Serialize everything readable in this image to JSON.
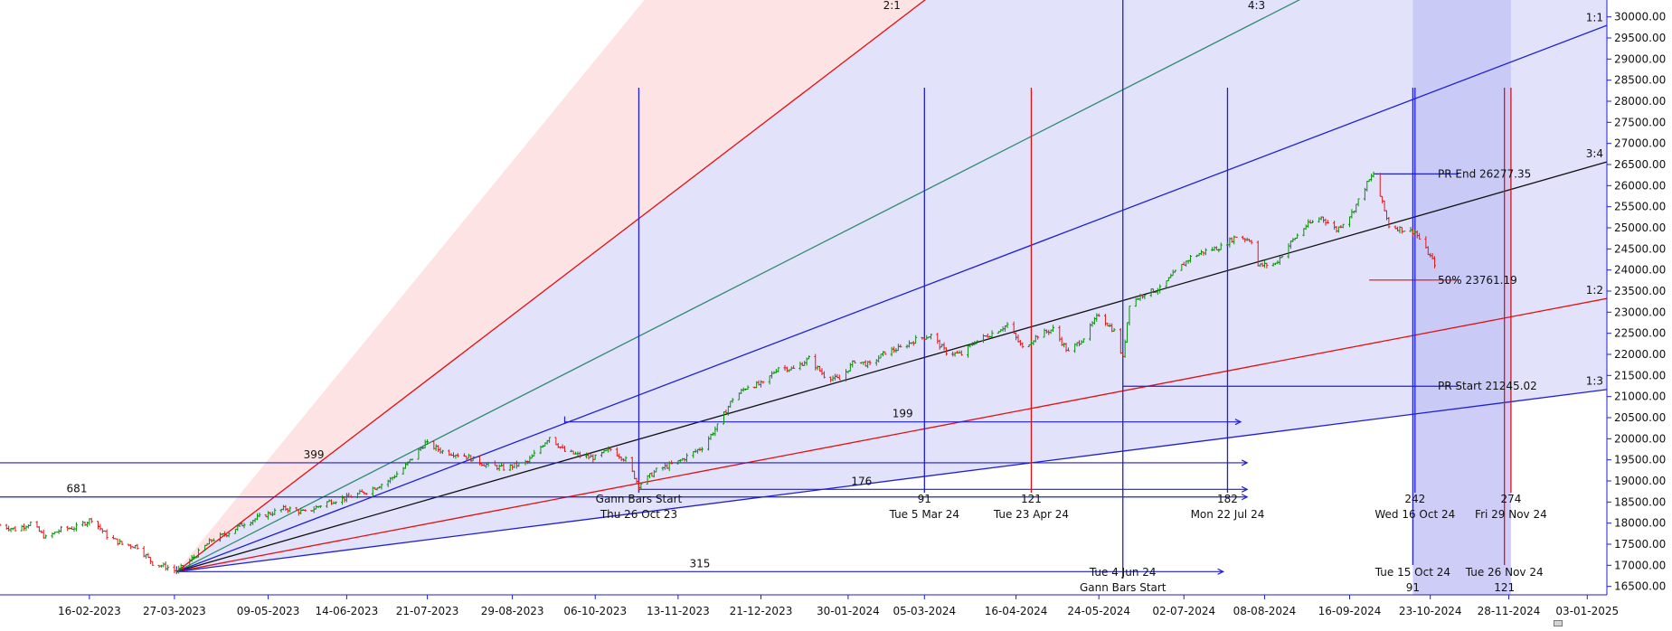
{
  "colors": {
    "blue": "#1f1fd6",
    "red": "#e01010",
    "black": "#111111",
    "teal": "#2e8b6e",
    "fan_blue_fill": "#e2e2fb",
    "fan_red_fill": "#fde3e3",
    "zone_fill": "#c8c8f6",
    "candle_up": "#0a8f0a",
    "candle_down": "#e01818",
    "axis": "#1f1fd6"
  },
  "chart_data": {
    "type": "line",
    "subtype": "candlestick price chart with Gann fan, time-cycle lines and price retracement",
    "x_axis": {
      "type": "date",
      "range": [
        "2023-01-06",
        "2025-01-12"
      ],
      "tick_labels": [
        "16-02-2023",
        "27-03-2023",
        "09-05-2023",
        "14-06-2023",
        "21-07-2023",
        "29-08-2023",
        "06-10-2023",
        "13-11-2023",
        "21-12-2023",
        "30-01-2024",
        "05-03-2024",
        "16-04-2024",
        "24-05-2024",
        "02-07-2024",
        "08-08-2024",
        "16-09-2024",
        "23-10-2024",
        "28-11-2024",
        "03-01-2025"
      ]
    },
    "y_axis": {
      "position": "right",
      "range": [
        16300,
        30400
      ],
      "tick_labels": [
        "30000.00",
        "29500.00",
        "29000.00",
        "28500.00",
        "28000.00",
        "27500.00",
        "27000.00",
        "26500.00",
        "26000.00",
        "25500.00",
        "25000.00",
        "24500.00",
        "24000.00",
        "23500.00",
        "23000.00",
        "22500.00",
        "22000.00",
        "21500.00",
        "21000.00",
        "20500.00",
        "20000.00",
        "19500.00",
        "19000.00",
        "18500.00",
        "18000.00",
        "17500.00",
        "17000.00",
        "16500.00"
      ]
    },
    "price_series": [
      [
        "2023-01-06",
        17950
      ],
      [
        "2023-01-13",
        17850
      ],
      [
        "2023-01-20",
        18000
      ],
      [
        "2023-01-27",
        17650
      ],
      [
        "2023-02-03",
        17850
      ],
      [
        "2023-02-10",
        17900
      ],
      [
        "2023-02-17",
        18100
      ],
      [
        "2023-02-24",
        17700
      ],
      [
        "2023-03-03",
        17500
      ],
      [
        "2023-03-10",
        17450
      ],
      [
        "2023-03-17",
        17050
      ],
      [
        "2023-03-24",
        16950
      ],
      [
        "2023-03-28",
        16850
      ],
      [
        "2023-04-05",
        17200
      ],
      [
        "2023-04-13",
        17600
      ],
      [
        "2023-04-20",
        17750
      ],
      [
        "2023-04-28",
        18000
      ],
      [
        "2023-05-08",
        18200
      ],
      [
        "2023-05-17",
        18350
      ],
      [
        "2023-05-26",
        18250
      ],
      [
        "2023-06-05",
        18500
      ],
      [
        "2023-06-14",
        18600
      ],
      [
        "2023-06-23",
        18750
      ],
      [
        "2023-07-03",
        19000
      ],
      [
        "2023-07-10",
        19300
      ],
      [
        "2023-07-20",
        19900
      ],
      [
        "2023-07-28",
        19700
      ],
      [
        "2023-08-07",
        19600
      ],
      [
        "2023-08-16",
        19400
      ],
      [
        "2023-08-25",
        19300
      ],
      [
        "2023-09-05",
        19450
      ],
      [
        "2023-09-15",
        20050
      ],
      [
        "2023-09-22",
        19700
      ],
      [
        "2023-09-29",
        19600
      ],
      [
        "2023-10-06",
        19550
      ],
      [
        "2023-10-13",
        19750
      ],
      [
        "2023-10-20",
        19500
      ],
      [
        "2023-10-26",
        18900
      ],
      [
        "2023-11-03",
        19250
      ],
      [
        "2023-11-13",
        19450
      ],
      [
        "2023-11-24",
        19800
      ],
      [
        "2023-12-01",
        20300
      ],
      [
        "2023-12-08",
        20950
      ],
      [
        "2023-12-15",
        21250
      ],
      [
        "2023-12-22",
        21300
      ],
      [
        "2023-12-29",
        21700
      ],
      [
        "2024-01-05",
        21650
      ],
      [
        "2024-01-12",
        21900
      ],
      [
        "2024-01-19",
        21500
      ],
      [
        "2024-01-26",
        21400
      ],
      [
        "2024-02-02",
        21850
      ],
      [
        "2024-02-09",
        21750
      ],
      [
        "2024-02-16",
        22050
      ],
      [
        "2024-02-23",
        22150
      ],
      [
        "2024-03-01",
        22350
      ],
      [
        "2024-03-08",
        22450
      ],
      [
        "2024-03-15",
        22050
      ],
      [
        "2024-03-22",
        22000
      ],
      [
        "2024-03-28",
        22300
      ],
      [
        "2024-04-05",
        22500
      ],
      [
        "2024-04-12",
        22700
      ],
      [
        "2024-04-19",
        22150
      ],
      [
        "2024-04-26",
        22450
      ],
      [
        "2024-05-03",
        22600
      ],
      [
        "2024-05-10",
        22050
      ],
      [
        "2024-05-17",
        22400
      ],
      [
        "2024-05-24",
        22950
      ],
      [
        "2024-05-31",
        22550
      ],
      [
        "2024-06-04",
        21900
      ],
      [
        "2024-06-07",
        23200
      ],
      [
        "2024-06-14",
        23450
      ],
      [
        "2024-06-21",
        23550
      ],
      [
        "2024-06-28",
        23950
      ],
      [
        "2024-07-05",
        24300
      ],
      [
        "2024-07-12",
        24450
      ],
      [
        "2024-07-19",
        24550
      ],
      [
        "2024-07-26",
        24800
      ],
      [
        "2024-08-02",
        24700
      ],
      [
        "2024-08-05",
        24100
      ],
      [
        "2024-08-13",
        24150
      ],
      [
        "2024-08-20",
        24650
      ],
      [
        "2024-08-27",
        25050
      ],
      [
        "2024-09-03",
        25250
      ],
      [
        "2024-09-10",
        24950
      ],
      [
        "2024-09-17",
        25350
      ],
      [
        "2024-09-24",
        26050
      ],
      [
        "2024-09-27",
        26277
      ],
      [
        "2024-10-04",
        25050
      ],
      [
        "2024-10-11",
        24950
      ],
      [
        "2024-10-16",
        24900
      ],
      [
        "2024-10-25",
        24150
      ]
    ],
    "gann_fan": {
      "origin": [
        "2023-03-28",
        16850
      ],
      "lines": [
        {
          "ratio": "2:1",
          "color": "red"
        },
        {
          "ratio": "4:3",
          "color": "teal"
        },
        {
          "ratio": "1:1",
          "color": "blue"
        },
        {
          "ratio": "3:4",
          "color": "black"
        },
        {
          "ratio": "1:2",
          "color": "red"
        },
        {
          "ratio": "1:3",
          "color": "blue"
        }
      ]
    },
    "vertical_lines": [
      {
        "date": "2023-10-26",
        "color": "blue",
        "count": "",
        "date_label": "Thu 26 Oct 23",
        "name_label": "Gann Bars Start"
      },
      {
        "date": "2024-03-05",
        "color": "blue",
        "count": "91",
        "date_label": "Tue 5 Mar 24"
      },
      {
        "date": "2024-04-23",
        "color": "red",
        "count": "121",
        "date_label": "Tue 23 Apr 24"
      },
      {
        "date": "2024-06-04",
        "color": "blue",
        "count": "",
        "date_label": "Tue 4 Jun 24",
        "name_label": "Gann Bars Start"
      },
      {
        "date": "2024-07-22",
        "color": "blue",
        "count": "182",
        "date_label": "Mon 22 Jul 24"
      },
      {
        "date": "2024-10-15",
        "color": "blue",
        "count": "91",
        "date_label": "Tue 15 Oct 24"
      },
      {
        "date": "2024-10-16",
        "color": "blue",
        "count": "242",
        "date_label": "Wed 16 Oct 24"
      },
      {
        "date": "2024-11-26",
        "color": "red",
        "count": "121",
        "date_label": "Tue 26 Nov 24"
      },
      {
        "date": "2024-11-29",
        "color": "red",
        "count": "274",
        "date_label": "Fri 29 Nov 24"
      }
    ],
    "horizontal_arrows": [
      {
        "label": "681",
        "y": 18620,
        "from": "2023-01-01",
        "to": "2024-07-31"
      },
      {
        "label": "399",
        "y": 19430,
        "from": "2023-01-01",
        "to": "2024-07-31"
      },
      {
        "label": "199",
        "y": 20400,
        "from": "2023-09-22",
        "to": "2024-07-28"
      },
      {
        "label": "176",
        "y": 18800,
        "from": "2023-10-26",
        "to": "2024-07-31"
      },
      {
        "label": "315",
        "y": 16850,
        "from": "2023-03-28",
        "to": "2024-07-20"
      }
    ],
    "price_retracement": {
      "start": {
        "label": "PR Start 21245.02",
        "value": 21245.02,
        "from": "2024-06-04"
      },
      "end": {
        "label": "PR End 26277.35",
        "value": 26277.35,
        "from": "2024-09-27"
      },
      "mid": {
        "label": "50% 23761.19",
        "value": 23761.19,
        "from": "2024-09-27"
      }
    },
    "time_zone_highlight": {
      "from": "2024-10-15",
      "to": "2024-11-29"
    }
  }
}
